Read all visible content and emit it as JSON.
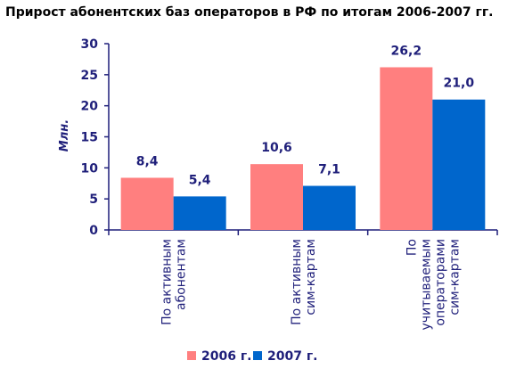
{
  "chart_data": {
    "type": "bar",
    "title": "Прирост абонентских баз операторов в РФ по итогам 2006-2007 гг.",
    "ylabel": "Млн.",
    "xlabel": "",
    "ylim": [
      0,
      30
    ],
    "yticks": [
      0,
      5,
      10,
      15,
      20,
      25,
      30
    ],
    "categories": [
      [
        "По активным",
        "абонентам"
      ],
      [
        "По активным",
        "сим-картам"
      ],
      [
        "По",
        "учитываемым",
        "операторами",
        "сим-картам"
      ]
    ],
    "series": [
      {
        "name": "2006 г.",
        "color": "#ff7f7f",
        "values": [
          8.4,
          10.6,
          26.2
        ],
        "labels": [
          "8,4",
          "10,6",
          "26,2"
        ]
      },
      {
        "name": "2007 г.",
        "color": "#0066cc",
        "values": [
          5.4,
          7.1,
          21.0
        ],
        "labels": [
          "5,4",
          "7,1",
          "21,0"
        ]
      }
    ],
    "grid": false,
    "legend": "bottom"
  }
}
